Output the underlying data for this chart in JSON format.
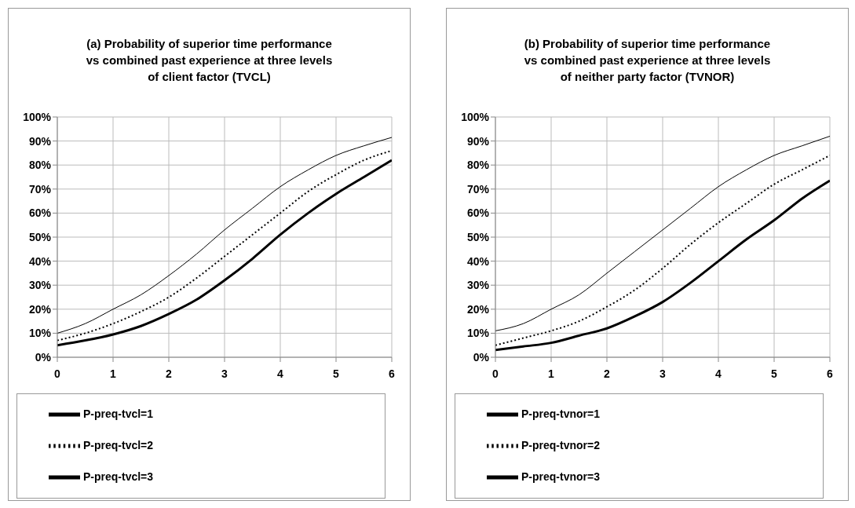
{
  "chart_data": [
    {
      "type": "line",
      "title": "(a) Probability of superior time performance vs combined past experience at three levels of client factor (TVCL)",
      "x": [
        0,
        0.5,
        1,
        1.5,
        2,
        2.5,
        3,
        3.5,
        4,
        4.5,
        5,
        5.5,
        6
      ],
      "xlim": [
        0,
        6
      ],
      "xticks": [
        0,
        1,
        2,
        3,
        4,
        5,
        6
      ],
      "ylim": [
        0,
        100
      ],
      "yticks": [
        {
          "value": 0,
          "label": "0%"
        },
        {
          "value": 10,
          "label": "10%"
        },
        {
          "value": 20,
          "label": "20%"
        },
        {
          "value": 30,
          "label": "30%"
        },
        {
          "value": 40,
          "label": "40%"
        },
        {
          "value": 50,
          "label": "50%"
        },
        {
          "value": 60,
          "label": "60%"
        },
        {
          "value": 70,
          "label": "70%"
        },
        {
          "value": 80,
          "label": "80%"
        },
        {
          "value": 90,
          "label": "90%"
        },
        {
          "value": 100,
          "label": "100%"
        }
      ],
      "grid": true,
      "legend": "bottom",
      "marker": "none",
      "series": [
        {
          "name": "P-preq-tvcl=1",
          "color": "#000000",
          "line_style": "solid",
          "values": [
            10,
            14,
            20,
            26,
            34,
            43,
            53,
            62,
            71,
            78,
            84,
            88,
            91.5
          ]
        },
        {
          "name": "P-preq-tvcl=2",
          "color": "#000000",
          "line_style": "dotted",
          "values": [
            7,
            10,
            14,
            19,
            25,
            33,
            42,
            51,
            60,
            69,
            76,
            82,
            86
          ]
        },
        {
          "name": "P-preq-tvcl=3",
          "color": "#000000",
          "line_style": "solid",
          "values": [
            5,
            7,
            9.5,
            13,
            18,
            24,
            32,
            41,
            51,
            60,
            68,
            75,
            82
          ]
        }
      ]
    },
    {
      "type": "line",
      "title": "(b) Probability of superior time performance vs combined past experience at three levels of neither party factor (TVNOR)",
      "x": [
        0,
        0.5,
        1,
        1.5,
        2,
        2.5,
        3,
        3.5,
        4,
        4.5,
        5,
        5.5,
        6
      ],
      "xlim": [
        0,
        6
      ],
      "xticks": [
        0,
        1,
        2,
        3,
        4,
        5,
        6
      ],
      "ylim": [
        0,
        100
      ],
      "yticks": [
        {
          "value": 0,
          "label": "0%"
        },
        {
          "value": 10,
          "label": "10%"
        },
        {
          "value": 20,
          "label": "20%"
        },
        {
          "value": 30,
          "label": "30%"
        },
        {
          "value": 40,
          "label": "40%"
        },
        {
          "value": 50,
          "label": "50%"
        },
        {
          "value": 60,
          "label": "60%"
        },
        {
          "value": 70,
          "label": "70%"
        },
        {
          "value": 80,
          "label": "80%"
        },
        {
          "value": 90,
          "label": "90%"
        },
        {
          "value": 100,
          "label": "100%"
        }
      ],
      "grid": true,
      "legend": "bottom",
      "marker": "none",
      "series": [
        {
          "name": "P-preq-tvnor=1",
          "color": "#000000",
          "line_style": "solid",
          "values": [
            11,
            14,
            20,
            26,
            35,
            44,
            53,
            62,
            71,
            78,
            84,
            88,
            92
          ]
        },
        {
          "name": "P-preq-tvnor=2",
          "color": "#000000",
          "line_style": "dotted",
          "values": [
            5,
            8,
            11,
            15,
            21,
            28,
            37,
            47,
            56,
            64,
            72,
            78,
            84
          ]
        },
        {
          "name": "P-preq-tvnor=3",
          "color": "#000000",
          "line_style": "solid",
          "values": [
            3,
            4.5,
            6,
            9,
            12,
            17,
            23,
            31,
            40,
            49,
            57,
            66,
            73.5
          ]
        }
      ]
    }
  ]
}
